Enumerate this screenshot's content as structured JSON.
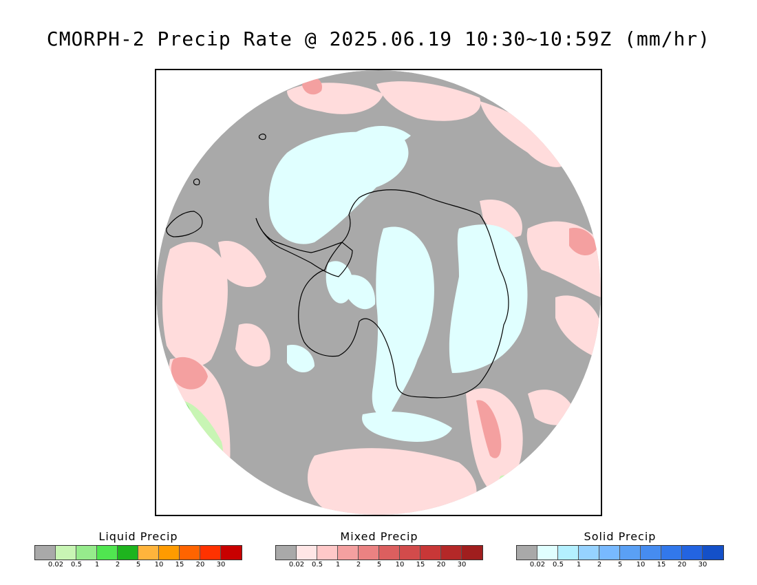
{
  "title": "CMORPH-2 Precip Rate @ 2025.06.19 10:30~10:59Z (mm/hr)",
  "map": {
    "projection": "south polar stereographic",
    "colors": {
      "no_precip": "#a9a9a9",
      "mixed_light": "#ffdcdc",
      "mixed_mid": "#f4a0a0",
      "mixed_heavy": "#e06666",
      "solid_light": "#e0ffff",
      "liquid_light": "#c8f5b4",
      "liquid_mid": "#64dc64",
      "coastline": "#000000"
    }
  },
  "legends": [
    {
      "title": "Liquid Precip",
      "colors": [
        "#a9a9a9",
        "#c8f5b4",
        "#96eb8c",
        "#50e650",
        "#1eb41e",
        "#ffb43c",
        "#ff9b00",
        "#ff6400",
        "#ff3200",
        "#c80000"
      ],
      "ticks": [
        "0.02",
        "0.5",
        "1",
        "2",
        "5",
        "10",
        "15",
        "20",
        "30"
      ]
    },
    {
      "title": "Mixed Precip",
      "colors": [
        "#a9a9a9",
        "#ffe6e6",
        "#ffc8c8",
        "#f4a0a0",
        "#eb8282",
        "#dc5f5f",
        "#d24b4b",
        "#c83737",
        "#b42828",
        "#a01e1e"
      ],
      "ticks": [
        "0.02",
        "0.5",
        "1",
        "2",
        "5",
        "10",
        "15",
        "20",
        "30"
      ]
    },
    {
      "title": "Solid Precip",
      "colors": [
        "#a9a9a9",
        "#e0ffff",
        "#b4f0ff",
        "#96d2ff",
        "#78b9ff",
        "#5aa0f5",
        "#468cf0",
        "#3278eb",
        "#2364e1",
        "#1450c8"
      ],
      "ticks": [
        "0.02",
        "0.5",
        "1",
        "2",
        "5",
        "10",
        "15",
        "20",
        "30"
      ]
    }
  ]
}
